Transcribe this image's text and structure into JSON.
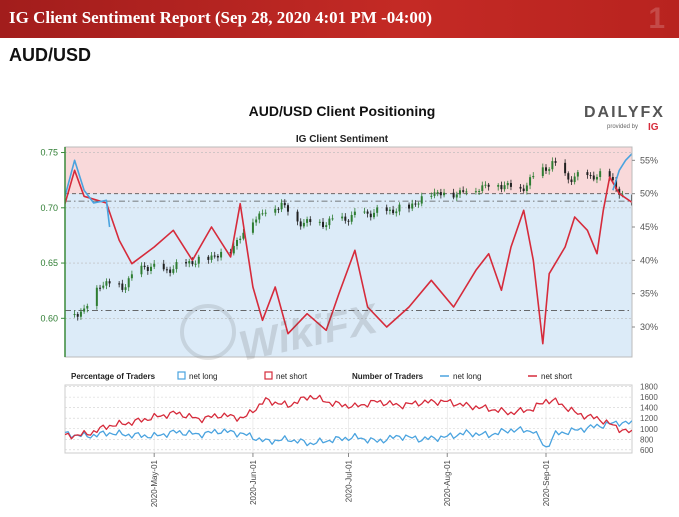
{
  "header": {
    "title": "IG Client Sentiment Report (Sep 28, 2020 4:01 PM -04:00)",
    "pair": "AUD/USD"
  },
  "brand": {
    "name": "DAILYFX",
    "provided_by": "provided by",
    "ig": "IG"
  },
  "watermark": "WikiFX",
  "colors": {
    "banner": "#b3221f",
    "price_up": "#2e7d32",
    "price_down": "#212121",
    "net_long": "#4aa3df",
    "net_short": "#d62b3b",
    "short_bg": "#f9d9da",
    "long_bg": "#dcebf8"
  },
  "chart_data": [
    {
      "type": "candlestick",
      "title": "AUD/USD Client Positioning",
      "subtitle": "IG Client Sentiment",
      "y_left_ticks": [
        "0.60",
        "0.65",
        "0.70",
        "0.75"
      ],
      "y_left_range": [
        0.565,
        0.755
      ],
      "y_right_ticks": [
        "30%",
        "35%",
        "40%",
        "45%",
        "50%",
        "55%"
      ],
      "y_right_range": [
        25.5,
        57
      ],
      "date_range": [
        "2020-04-03",
        "2020-09-28"
      ],
      "x_ticks": [
        "2020-May-01",
        "2020-Jun-01",
        "2020-Jul-01",
        "2020-Aug-01",
        "2020-Sep-01"
      ],
      "price_close": [
        [
          "2020-04-03",
          0.603
        ],
        [
          "2020-04-09",
          0.607
        ],
        [
          "2020-04-14",
          0.632
        ],
        [
          "2020-04-21",
          0.629
        ],
        [
          "2020-04-28",
          0.648
        ],
        [
          "2020-05-04",
          0.643
        ],
        [
          "2020-05-11",
          0.65
        ],
        [
          "2020-05-18",
          0.655
        ],
        [
          "2020-05-25",
          0.662
        ],
        [
          "2020-06-01",
          0.69
        ],
        [
          "2020-06-05",
          0.697
        ],
        [
          "2020-06-10",
          0.704
        ],
        [
          "2020-06-15",
          0.688
        ],
        [
          "2020-06-22",
          0.686
        ],
        [
          "2020-06-29",
          0.69
        ],
        [
          "2020-07-06",
          0.695
        ],
        [
          "2020-07-13",
          0.697
        ],
        [
          "2020-07-20",
          0.701
        ],
        [
          "2020-07-27",
          0.714
        ],
        [
          "2020-08-03",
          0.713
        ],
        [
          "2020-08-10",
          0.718
        ],
        [
          "2020-08-17",
          0.722
        ],
        [
          "2020-08-24",
          0.717
        ],
        [
          "2020-08-31",
          0.735
        ],
        [
          "2020-09-03",
          0.74
        ],
        [
          "2020-09-08",
          0.727
        ],
        [
          "2020-09-14",
          0.729
        ],
        [
          "2020-09-21",
          0.729
        ],
        [
          "2020-09-25",
          0.709
        ],
        [
          "2020-09-28",
          0.705
        ]
      ],
      "net_long_pct": [
        [
          "2020-04-03",
          49.6
        ],
        [
          "2020-04-06",
          55.0
        ],
        [
          "2020-04-09",
          50.5
        ],
        [
          "2020-04-12",
          48.6
        ],
        [
          "2020-04-16",
          49.0
        ],
        [
          "2020-04-17",
          45.0
        ]
      ],
      "net_short_pct": [
        [
          "2020-04-03",
          48.5
        ],
        [
          "2020-04-06",
          53.5
        ],
        [
          "2020-04-09",
          49.6
        ],
        [
          "2020-04-16",
          48.6
        ],
        [
          "2020-04-20",
          43.0
        ],
        [
          "2020-04-24",
          39.5
        ],
        [
          "2020-05-01",
          42.0
        ],
        [
          "2020-05-07",
          44.5
        ],
        [
          "2020-05-13",
          40.0
        ],
        [
          "2020-05-19",
          45.0
        ],
        [
          "2020-05-25",
          40.5
        ],
        [
          "2020-05-28",
          48.5
        ],
        [
          "2020-06-01",
          36.0
        ],
        [
          "2020-06-04",
          31.0
        ],
        [
          "2020-06-08",
          36.0
        ],
        [
          "2020-06-12",
          29.0
        ],
        [
          "2020-06-18",
          32.0
        ],
        [
          "2020-06-24",
          29.5
        ],
        [
          "2020-06-28",
          35.0
        ],
        [
          "2020-07-03",
          41.5
        ],
        [
          "2020-07-07",
          33.0
        ],
        [
          "2020-07-13",
          30.0
        ],
        [
          "2020-07-20",
          33.0
        ],
        [
          "2020-07-27",
          37.0
        ],
        [
          "2020-08-03",
          33.0
        ],
        [
          "2020-08-10",
          38.5
        ],
        [
          "2020-08-14",
          41.0
        ],
        [
          "2020-08-18",
          35.5
        ],
        [
          "2020-08-21",
          42.0
        ],
        [
          "2020-08-25",
          47.5
        ],
        [
          "2020-08-28",
          40.0
        ],
        [
          "2020-08-31",
          27.5
        ],
        [
          "2020-09-02",
          38.0
        ],
        [
          "2020-09-07",
          42.0
        ],
        [
          "2020-09-10",
          46.5
        ],
        [
          "2020-09-14",
          44.5
        ],
        [
          "2020-09-17",
          41.0
        ],
        [
          "2020-09-19",
          47.5
        ],
        [
          "2020-09-21",
          52.5
        ],
        [
          "2020-09-24",
          50.0
        ],
        [
          "2020-09-28",
          48.7
        ]
      ],
      "net_long_pct_late": [
        [
          "2020-09-22",
          50.5
        ],
        [
          "2020-09-24",
          53.5
        ],
        [
          "2020-09-26",
          55.0
        ],
        [
          "2020-09-28",
          56.0
        ]
      ],
      "reference_lines": [
        {
          "axis": "left",
          "value": 0.706,
          "style": "dash-dot"
        },
        {
          "axis": "left",
          "value": 0.607,
          "style": "dash-dot"
        },
        {
          "axis": "right",
          "value": 50,
          "style": "dashed"
        }
      ]
    },
    {
      "type": "line",
      "legend": {
        "pct_label": "Percentage of Traders",
        "pct_long": "net long",
        "pct_short": "net short",
        "num_label": "Number of Traders",
        "num_long": "net long",
        "num_short": "net short"
      },
      "y_right_ticks": [
        "600",
        "800",
        "1000",
        "1200",
        "1400",
        "1600",
        "1800"
      ],
      "y_right_range": [
        540,
        1830
      ],
      "date_range": [
        "2020-04-03",
        "2020-09-28"
      ],
      "x_ticks": [
        "2020-May-01",
        "2020-Jun-01",
        "2020-Jul-01",
        "2020-Aug-01",
        "2020-Sep-01"
      ],
      "series": [
        {
          "name": "net long",
          "values": [
            [
              "2020-04-03",
              900
            ],
            [
              "2020-04-10",
              860
            ],
            [
              "2020-04-17",
              920
            ],
            [
              "2020-04-24",
              880
            ],
            [
              "2020-05-01",
              860
            ],
            [
              "2020-05-08",
              940
            ],
            [
              "2020-05-15",
              890
            ],
            [
              "2020-05-22",
              960
            ],
            [
              "2020-05-29",
              900
            ],
            [
              "2020-06-05",
              760
            ],
            [
              "2020-06-12",
              800
            ],
            [
              "2020-06-19",
              720
            ],
            [
              "2020-06-26",
              790
            ],
            [
              "2020-07-03",
              840
            ],
            [
              "2020-07-10",
              760
            ],
            [
              "2020-07-17",
              860
            ],
            [
              "2020-07-24",
              800
            ],
            [
              "2020-07-31",
              840
            ],
            [
              "2020-08-07",
              920
            ],
            [
              "2020-08-14",
              880
            ],
            [
              "2020-08-21",
              980
            ],
            [
              "2020-08-28",
              960
            ],
            [
              "2020-09-01",
              640
            ],
            [
              "2020-09-04",
              900
            ],
            [
              "2020-09-11",
              980
            ],
            [
              "2020-09-18",
              1060
            ],
            [
              "2020-09-24",
              1120
            ],
            [
              "2020-09-28",
              1100
            ]
          ]
        },
        {
          "name": "net short",
          "values": [
            [
              "2020-04-03",
              860
            ],
            [
              "2020-04-10",
              900
            ],
            [
              "2020-04-17",
              1060
            ],
            [
              "2020-04-24",
              1120
            ],
            [
              "2020-05-01",
              1220
            ],
            [
              "2020-05-08",
              1300
            ],
            [
              "2020-05-15",
              1180
            ],
            [
              "2020-05-22",
              1260
            ],
            [
              "2020-05-29",
              1200
            ],
            [
              "2020-06-05",
              1540
            ],
            [
              "2020-06-12",
              1440
            ],
            [
              "2020-06-19",
              1620
            ],
            [
              "2020-06-26",
              1480
            ],
            [
              "2020-07-03",
              1420
            ],
            [
              "2020-07-10",
              1520
            ],
            [
              "2020-07-17",
              1440
            ],
            [
              "2020-07-24",
              1500
            ],
            [
              "2020-07-31",
              1520
            ],
            [
              "2020-08-07",
              1440
            ],
            [
              "2020-08-14",
              1380
            ],
            [
              "2020-08-21",
              1300
            ],
            [
              "2020-08-28",
              1380
            ],
            [
              "2020-09-01",
              1540
            ],
            [
              "2020-09-04",
              1520
            ],
            [
              "2020-09-11",
              1280
            ],
            [
              "2020-09-18",
              1180
            ],
            [
              "2020-09-24",
              1000
            ],
            [
              "2020-09-28",
              920
            ]
          ]
        }
      ]
    }
  ]
}
